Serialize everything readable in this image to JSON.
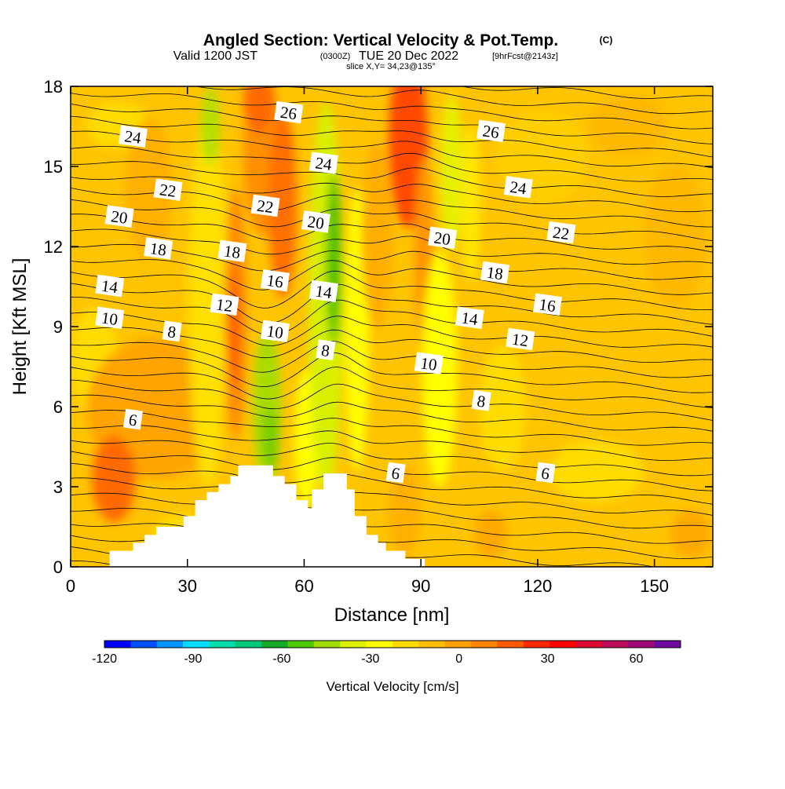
{
  "header": {
    "title": "Angled Section: Vertical Velocity & Pot.Temp.",
    "title_unit": "(C)",
    "valid_prefix": "Valid 1200 JST",
    "valid_z": "(0300Z)",
    "valid_date": "TUE 20 Dec 2022",
    "fcst": "[9hrFcst@2143z]",
    "slice": "slice X,Y= 34,23@135°"
  },
  "chart_data": {
    "type": "heatmap",
    "xlabel": "Distance [nm]",
    "ylabel": "Height [Kft MSL]",
    "xlim": [
      0,
      165
    ],
    "ylim": [
      0,
      18
    ],
    "x_ticks": [
      "0",
      "30",
      "60",
      "90",
      "120",
      "150"
    ],
    "y_ticks": [
      "0",
      "3",
      "6",
      "9",
      "12",
      "15",
      "18"
    ],
    "terrain_profile": [
      [
        0,
        0
      ],
      [
        10,
        0
      ],
      [
        10,
        0.6
      ],
      [
        16,
        0.6
      ],
      [
        16,
        0.9
      ],
      [
        19,
        0.9
      ],
      [
        19,
        1.2
      ],
      [
        22,
        1.2
      ],
      [
        22,
        1.5
      ],
      [
        29,
        1.5
      ],
      [
        29,
        1.9
      ],
      [
        32,
        1.9
      ],
      [
        32,
        2.5
      ],
      [
        35,
        2.5
      ],
      [
        35,
        2.8
      ],
      [
        38,
        2.8
      ],
      [
        38,
        3.1
      ],
      [
        41,
        3.1
      ],
      [
        41,
        3.4
      ],
      [
        43,
        3.4
      ],
      [
        43,
        3.8
      ],
      [
        52,
        3.8
      ],
      [
        52,
        3.4
      ],
      [
        55,
        3.4
      ],
      [
        55,
        3.1
      ],
      [
        58,
        3.1
      ],
      [
        58,
        2.5
      ],
      [
        61,
        2.5
      ],
      [
        61,
        2.2
      ],
      [
        62,
        2.2
      ],
      [
        62,
        2.9
      ],
      [
        65,
        2.9
      ],
      [
        65,
        3.5
      ],
      [
        71,
        3.5
      ],
      [
        71,
        2.9
      ],
      [
        73,
        2.9
      ],
      [
        73,
        1.9
      ],
      [
        76,
        1.9
      ],
      [
        76,
        1.2
      ],
      [
        79,
        1.2
      ],
      [
        79,
        0.9
      ],
      [
        81,
        0.9
      ],
      [
        81,
        0.6
      ],
      [
        86,
        0.6
      ],
      [
        86,
        0.3
      ],
      [
        91,
        0.3
      ],
      [
        91,
        0
      ]
    ],
    "colorbar": {
      "label": "Vertical Velocity [cm/s]",
      "tick_labels": [
        "-120",
        "-90",
        "-60",
        "-30",
        "0",
        "30",
        "60"
      ],
      "tick_values": [
        -120,
        -90,
        -60,
        -30,
        0,
        30,
        60
      ],
      "min": -120,
      "max": 75,
      "colors": [
        "#0000ff",
        "#0050ff",
        "#0096ff",
        "#00dcff",
        "#00dcaa",
        "#00c878",
        "#14aa28",
        "#50c800",
        "#a0dc00",
        "#dcf000",
        "#ffff00",
        "#ffdc00",
        "#ffbe00",
        "#ffa000",
        "#ff8200",
        "#ff5a00",
        "#ff2800",
        "#ff0000",
        "#dc0a32",
        "#be0a5a",
        "#a00a78",
        "#6e0aa0"
      ]
    },
    "contour_labels": [
      {
        "t": "24",
        "x": 16.0,
        "y": 16.1
      },
      {
        "t": "22",
        "x": 25.0,
        "y": 14.1
      },
      {
        "t": "20",
        "x": 12.5,
        "y": 13.1
      },
      {
        "t": "18",
        "x": 22.5,
        "y": 11.9
      },
      {
        "t": "14",
        "x": 10.0,
        "y": 10.5
      },
      {
        "t": "10",
        "x": 10.0,
        "y": 9.3
      },
      {
        "t": "8",
        "x": 26.0,
        "y": 8.8
      },
      {
        "t": "6",
        "x": 16.0,
        "y": 5.5
      },
      {
        "t": "26",
        "x": 56.0,
        "y": 17.0
      },
      {
        "t": "22",
        "x": 50.0,
        "y": 13.5
      },
      {
        "t": "18",
        "x": 41.5,
        "y": 11.8
      },
      {
        "t": "16",
        "x": 52.5,
        "y": 10.7
      },
      {
        "t": "12",
        "x": 39.5,
        "y": 9.8
      },
      {
        "t": "10",
        "x": 52.5,
        "y": 8.8
      },
      {
        "t": "24",
        "x": 65.0,
        "y": 15.1
      },
      {
        "t": "20",
        "x": 63.0,
        "y": 12.9
      },
      {
        "t": "14",
        "x": 65.0,
        "y": 10.3
      },
      {
        "t": "8",
        "x": 65.5,
        "y": 8.1
      },
      {
        "t": "20",
        "x": 95.5,
        "y": 12.3
      },
      {
        "t": "10",
        "x": 92.0,
        "y": 7.6
      },
      {
        "t": "6",
        "x": 83.5,
        "y": 3.5
      },
      {
        "t": "26",
        "x": 108.0,
        "y": 16.3
      },
      {
        "t": "24",
        "x": 115.0,
        "y": 14.2
      },
      {
        "t": "22",
        "x": 126.0,
        "y": 12.5
      },
      {
        "t": "18",
        "x": 109.0,
        "y": 11.0
      },
      {
        "t": "16",
        "x": 122.5,
        "y": 9.8
      },
      {
        "t": "14",
        "x": 102.5,
        "y": 9.3
      },
      {
        "t": "12",
        "x": 115.5,
        "y": 8.5
      },
      {
        "t": "8",
        "x": 105.5,
        "y": 6.2
      },
      {
        "t": "6",
        "x": 122.0,
        "y": 3.5
      }
    ]
  }
}
